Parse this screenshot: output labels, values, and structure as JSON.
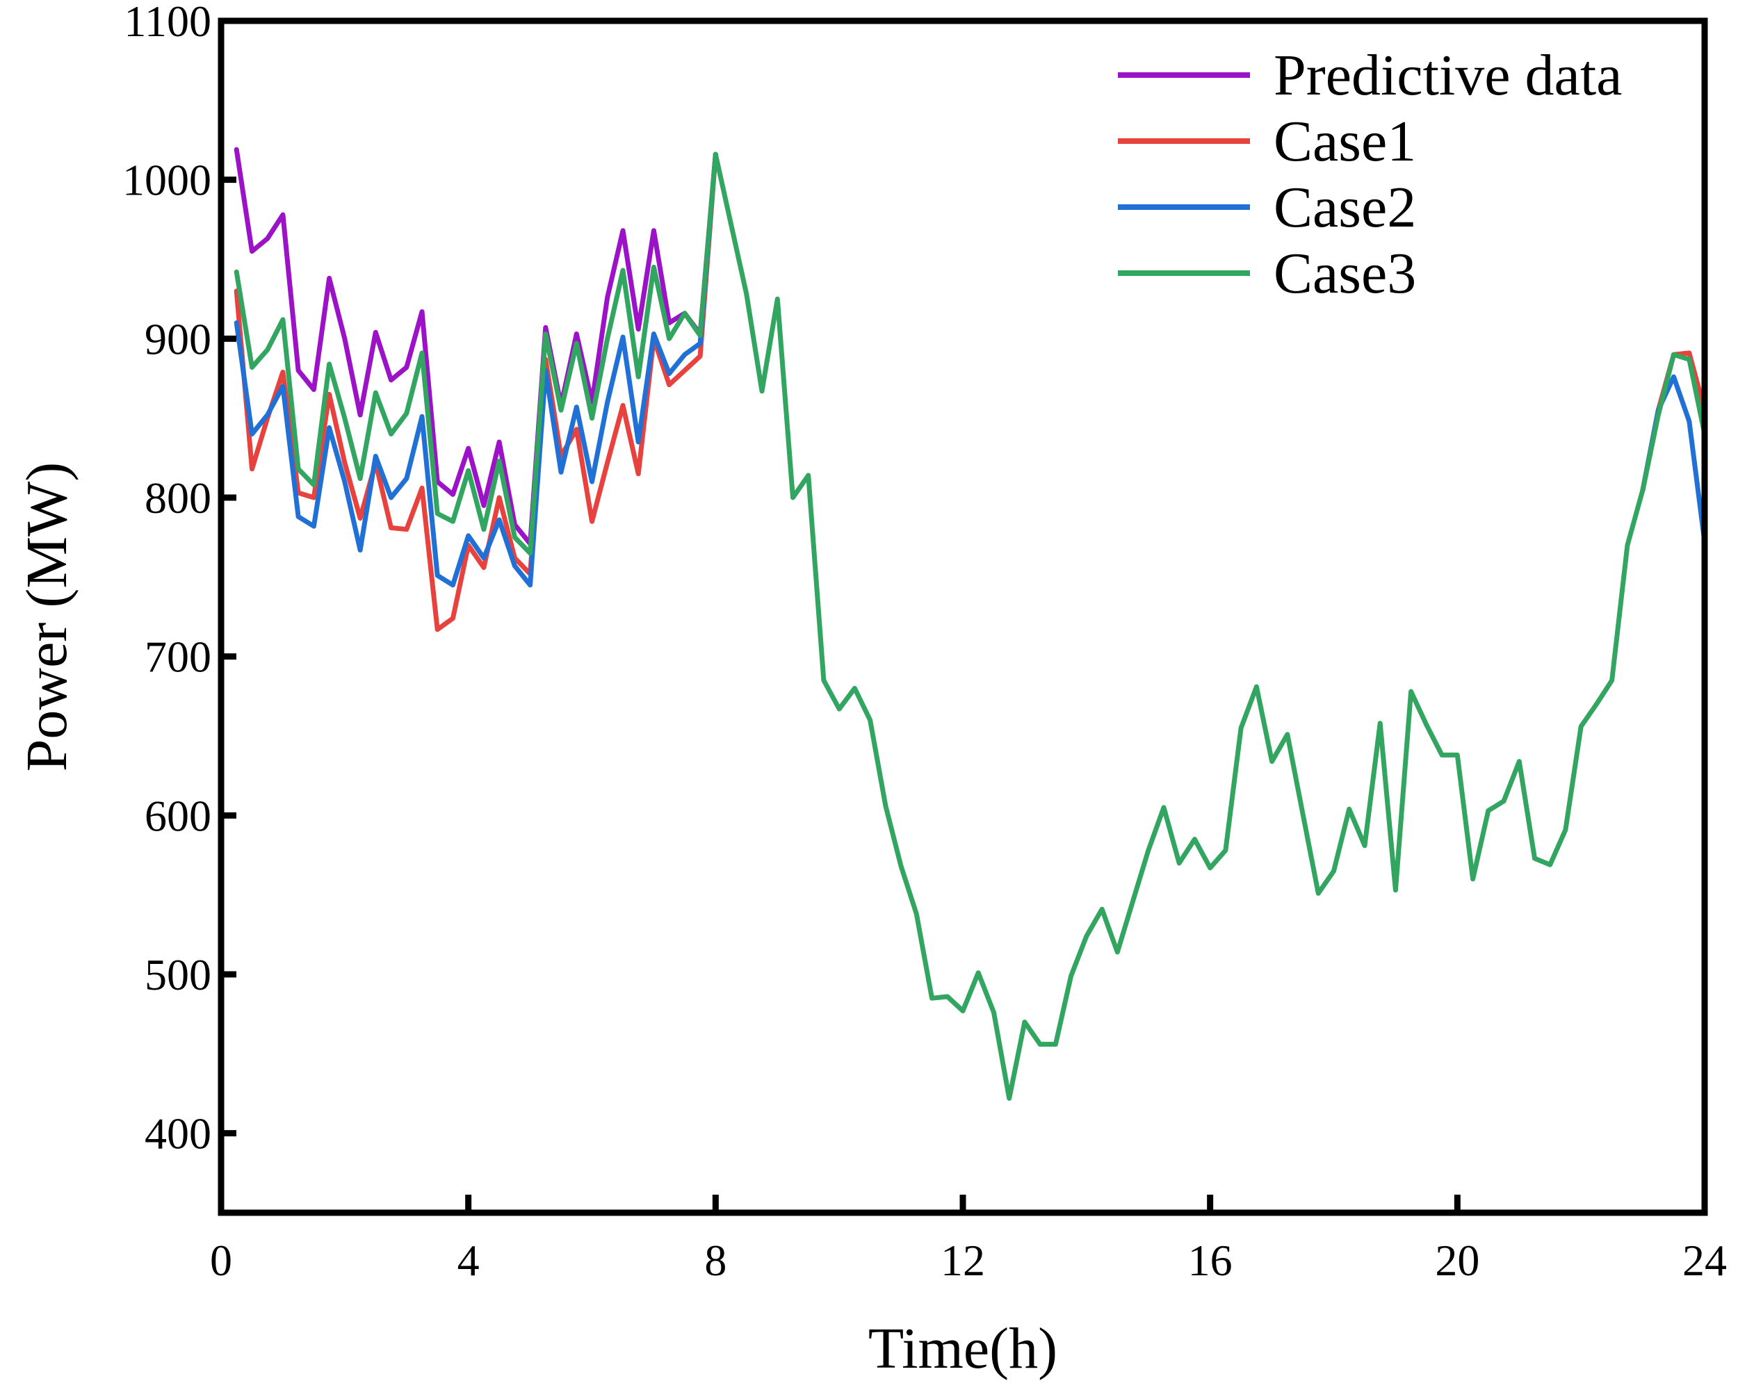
{
  "chart_data": {
    "type": "line",
    "title": "",
    "xlabel": "Time(h)",
    "ylabel": "Power (MW)",
    "xlim": [
      0,
      24
    ],
    "ylim": [
      350,
      1100
    ],
    "xticks": [
      0,
      4,
      8,
      12,
      16,
      20,
      24
    ],
    "yticks": [
      400,
      500,
      600,
      700,
      800,
      900,
      1000,
      1100
    ],
    "grid": false,
    "legend_position": "top-right",
    "shared_tail": {
      "x": [
        8.5,
        8.75,
        9,
        9.25,
        9.5,
        9.75,
        10,
        10.25,
        10.5,
        10.75,
        11,
        11.25,
        11.5,
        11.75,
        12,
        12.25,
        12.5,
        12.75,
        13,
        13.25,
        13.5,
        13.75,
        14,
        14.25,
        14.5,
        14.75,
        15,
        15.25,
        15.5,
        15.75,
        16,
        16.25,
        16.5,
        16.75,
        17,
        17.25,
        17.5,
        17.75,
        18,
        18.25,
        18.5,
        18.75,
        19,
        19.25,
        19.5,
        19.75,
        20,
        20.25,
        20.5,
        20.75,
        21,
        21.25,
        21.5,
        21.75,
        22,
        22.25,
        22.5,
        22.75,
        23
      ],
      "values": [
        928,
        867,
        925,
        800,
        814,
        685,
        667,
        680,
        660,
        606,
        568,
        538,
        485,
        486,
        477,
        501,
        476,
        422,
        470,
        456,
        456,
        499,
        524,
        541,
        514,
        546,
        578,
        605,
        570,
        585,
        567,
        578,
        655,
        681,
        634,
        651,
        601,
        551,
        565,
        604,
        581,
        658,
        553,
        678,
        657,
        638,
        638,
        560,
        603,
        609,
        634,
        573,
        569,
        591,
        656,
        670,
        685,
        770,
        805
      ]
    },
    "series": [
      {
        "name": "Predictive data",
        "color": "#9b12c7",
        "x": [
          0.25,
          0.5,
          0.75,
          1,
          1.25,
          1.5,
          1.75,
          2,
          2.25,
          2.5,
          2.75,
          3,
          3.25,
          3.5,
          3.75,
          4,
          4.25,
          4.5,
          4.75,
          5,
          5.25,
          5.5,
          5.75,
          6,
          6.25,
          6.5,
          6.75,
          7,
          7.25,
          7.5,
          7.75,
          8
        ],
        "values": [
          1019,
          955,
          963,
          978,
          880,
          868,
          938,
          900,
          852,
          904,
          874,
          882,
          917,
          810,
          802,
          831,
          795,
          835,
          783,
          771,
          907,
          858,
          903,
          860,
          926,
          968,
          906,
          968,
          910,
          916,
          903,
          1016
        ]
      },
      {
        "name": "Case1",
        "color": "#e8423f",
        "x": [
          0.25,
          0.5,
          0.75,
          1,
          1.25,
          1.5,
          1.75,
          2,
          2.25,
          2.5,
          2.75,
          3,
          3.25,
          3.5,
          3.75,
          4,
          4.25,
          4.5,
          4.75,
          5,
          5.25,
          5.5,
          5.75,
          6,
          6.25,
          6.5,
          6.75,
          7,
          7.25,
          7.5,
          7.75,
          8,
          23.25,
          23.5,
          23.75,
          24
        ],
        "values": [
          930,
          818,
          850,
          879,
          803,
          800,
          865,
          822,
          787,
          822,
          781,
          780,
          806,
          717,
          724,
          770,
          756,
          800,
          762,
          752,
          887,
          826,
          843,
          785,
          822,
          858,
          815,
          900,
          871,
          880,
          889,
          1016,
          855,
          890,
          891,
          855
        ]
      },
      {
        "name": "Case2",
        "color": "#2170d6",
        "x": [
          0.25,
          0.5,
          0.75,
          1,
          1.25,
          1.5,
          1.75,
          2,
          2.25,
          2.5,
          2.75,
          3,
          3.25,
          3.5,
          3.75,
          4,
          4.25,
          4.5,
          4.75,
          5,
          5.25,
          5.5,
          5.75,
          6,
          6.25,
          6.5,
          6.75,
          7,
          7.25,
          7.5,
          7.75,
          8,
          23.25,
          23.5,
          23.75,
          24
        ],
        "values": [
          910,
          840,
          852,
          870,
          788,
          782,
          844,
          810,
          767,
          826,
          800,
          812,
          851,
          751,
          745,
          776,
          762,
          786,
          757,
          745,
          880,
          816,
          857,
          810,
          860,
          901,
          835,
          903,
          878,
          890,
          897,
          1016,
          855,
          876,
          848,
          772
        ]
      },
      {
        "name": "Case3",
        "color": "#32a561",
        "x": [
          0.25,
          0.5,
          0.75,
          1,
          1.25,
          1.5,
          1.75,
          2,
          2.25,
          2.5,
          2.75,
          3,
          3.25,
          3.5,
          3.75,
          4,
          4.25,
          4.5,
          4.75,
          5,
          5.25,
          5.5,
          5.75,
          6,
          6.25,
          6.5,
          6.75,
          7,
          7.25,
          7.5,
          7.75,
          8,
          23.25,
          23.5,
          23.75,
          24
        ],
        "values": [
          942,
          882,
          893,
          912,
          818,
          808,
          884,
          850,
          812,
          866,
          840,
          853,
          891,
          790,
          785,
          817,
          780,
          823,
          775,
          765,
          903,
          855,
          897,
          850,
          900,
          943,
          876,
          945,
          900,
          916,
          902,
          1016,
          852,
          890,
          887,
          840
        ]
      }
    ]
  }
}
